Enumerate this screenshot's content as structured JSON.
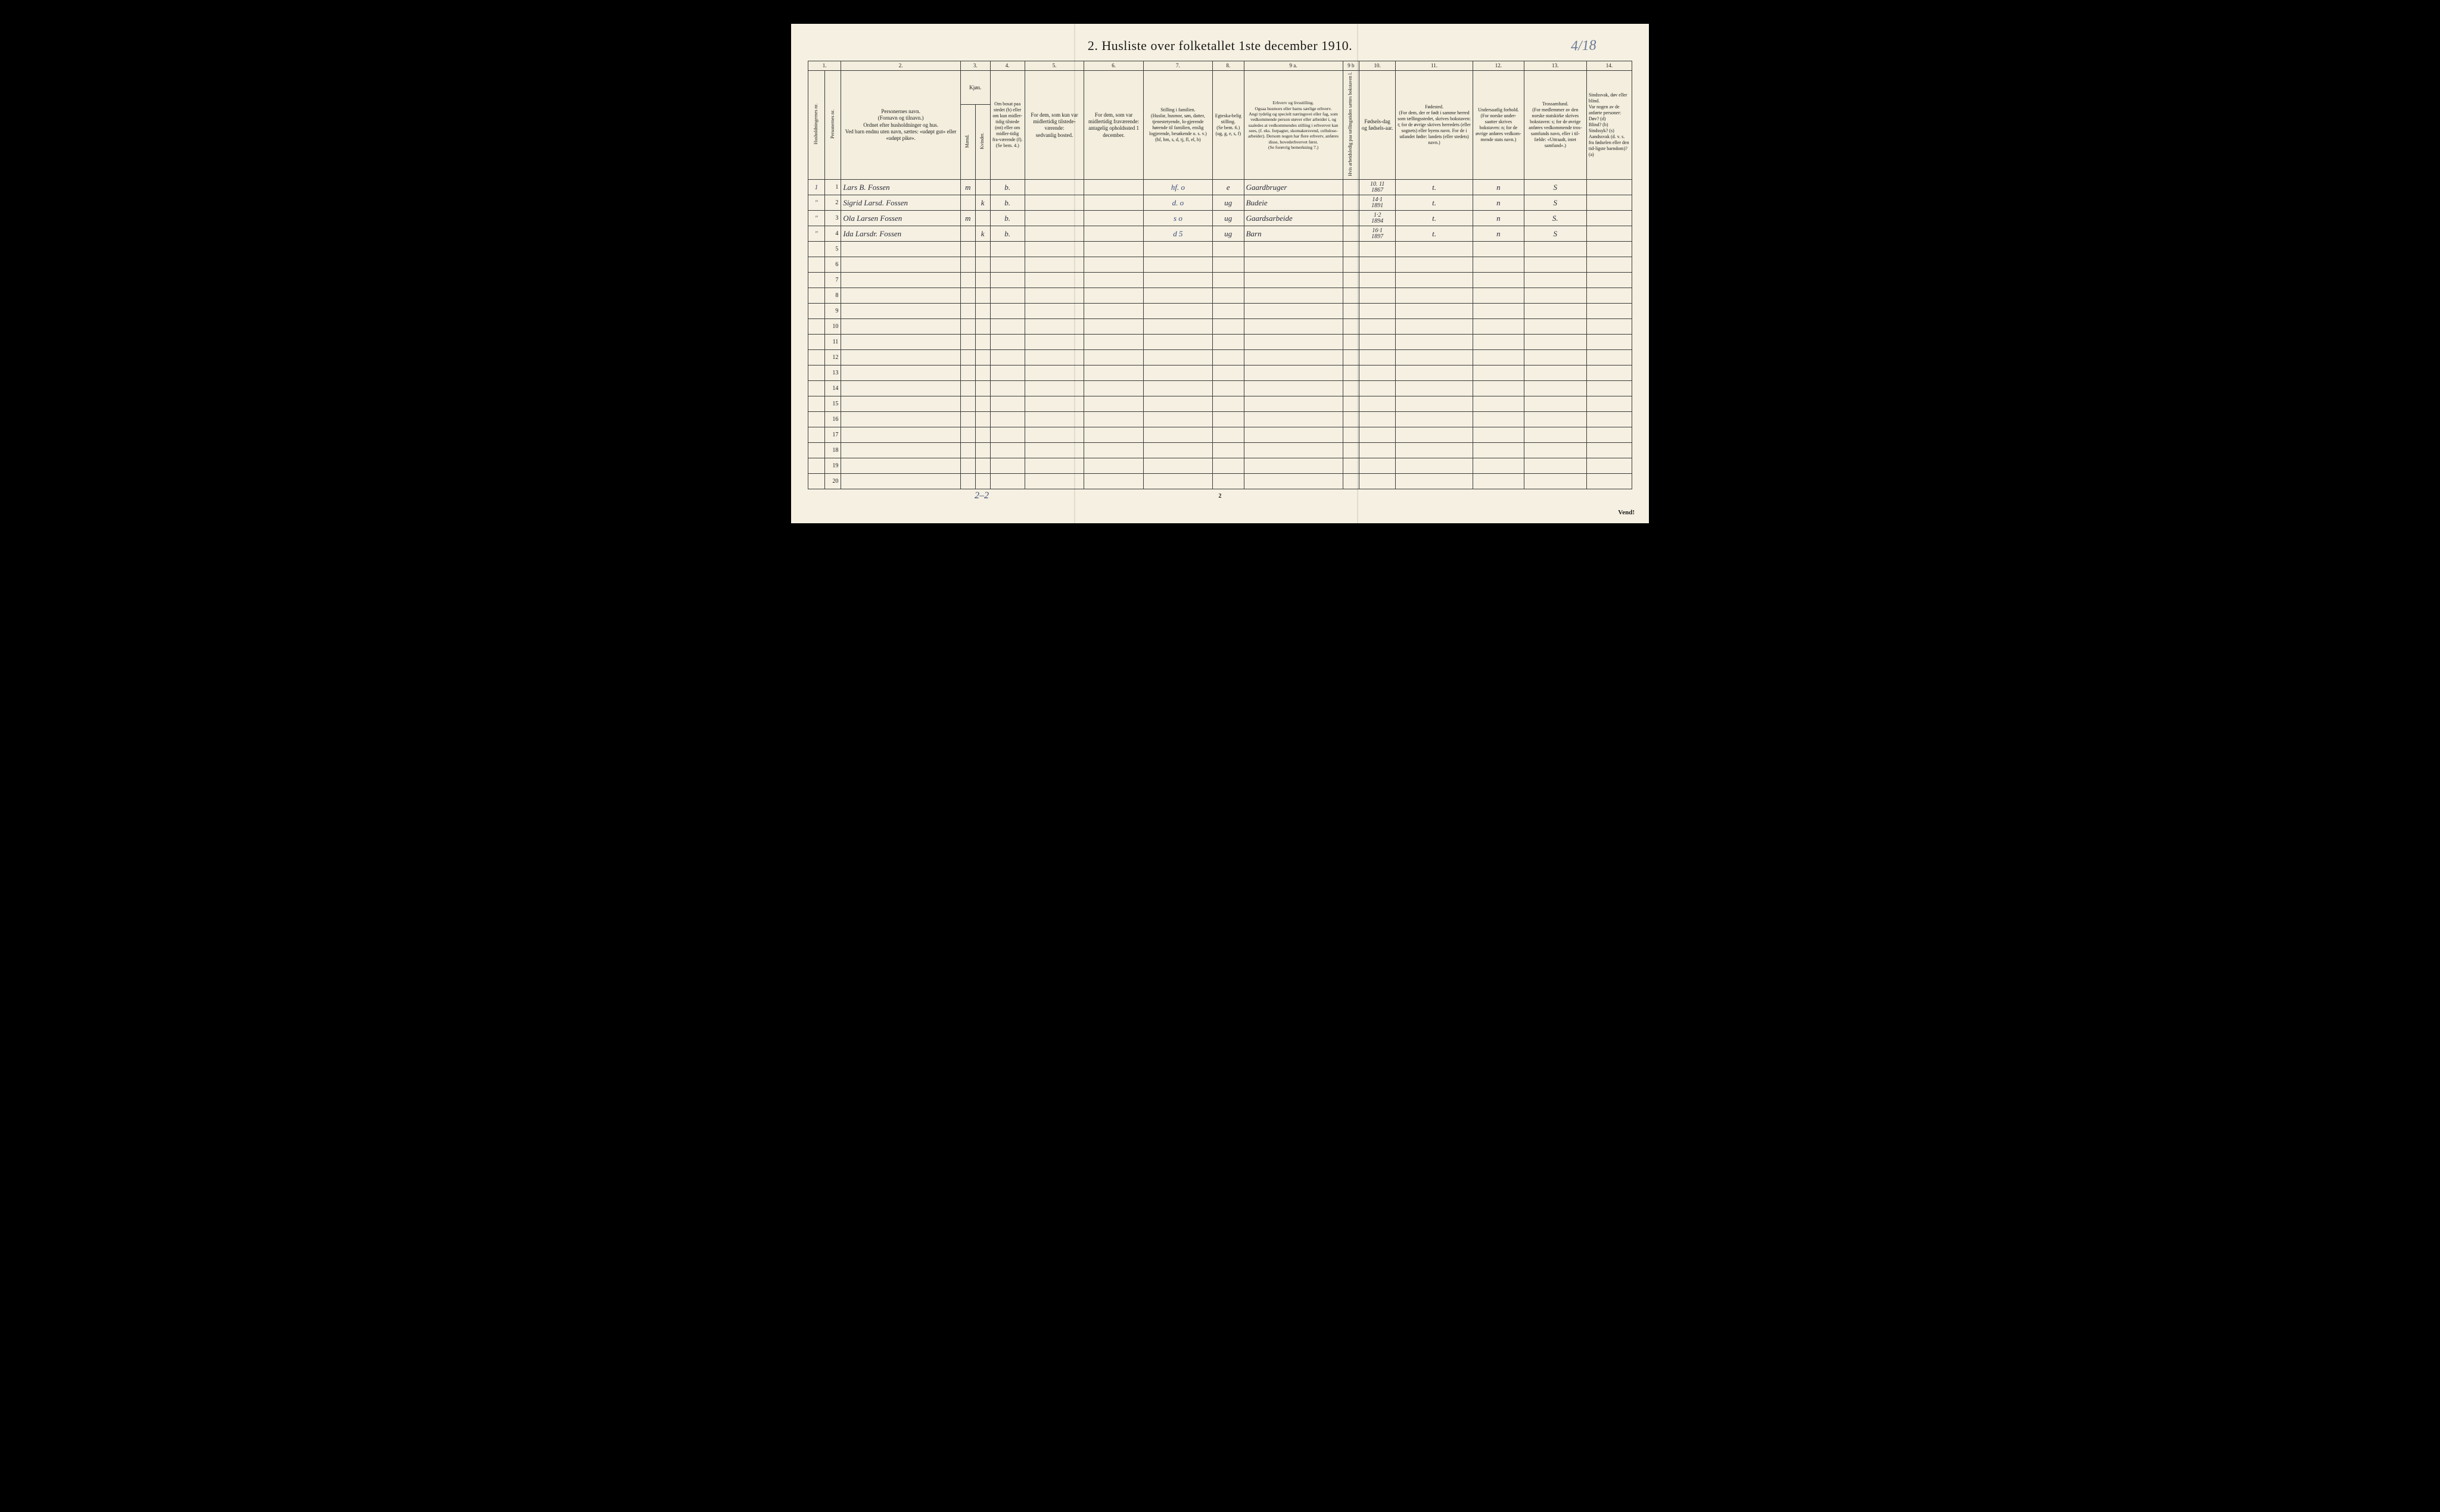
{
  "title": "2.  Husliste over folketallet 1ste december 1910.",
  "handwritten_id": "4/18",
  "page_number_bottom": "2",
  "vend_label": "Vend!",
  "footer_tally": "2–2",
  "column_numbers": [
    "1.",
    "",
    "2.",
    "3.",
    "",
    "4.",
    "5.",
    "6.",
    "7.",
    "8.",
    "9 a.",
    "9 b",
    "10.",
    "11.",
    "12.",
    "13.",
    "14."
  ],
  "headers": {
    "c1a": "Husholdningernes nr.",
    "c1b": "Personernes nr.",
    "c2": "Personernes navn.\n(Fornavn og tilnavn.)\nOrdnet efter husholdninger og hus.\nVed barn endnu uten navn, sættes: «udøpt gut» eller «udøpt pike».",
    "c3_top": "Kjøn.",
    "c3_m": "Mænd.",
    "c3_k": "Kvinder.",
    "c3_mk": "m.  k.",
    "c4": "Om bosat paa stedet (b) eller om kun midler-tidig tilstede (mt) eller om midler-tidig fra-værende (f). (Se bem. 4.)",
    "c5": "For dem, som kun var midlertidig tilstede-værende:\nsedvanlig bosted.",
    "c6": "For dem, som var midlertidig fraværende:\nantagelig opholdssted 1 december.",
    "c7": "Stilling i familien.\n(Husfar, husmor, søn, datter, tjenestetyende, lo-gjerende hørende til familien, enslig logjerende, besøkende o. s. v.)\n(hf, hm, s, d, tj, fl, el, b)",
    "c8": "Egteska-belig stilling.\n(Se bem. 6.)\n(ug, g, e, s, f)",
    "c9a": "Erhverv og livsstilling.\nOgsaa husmors eller barns særlige erhverv.\nAngi tydelig og specielt næringsvei eller fag, som vedkommende person utøver eller arbeider i, og saaledes at vedkommendes stilling i erhvervet kan sees, (f. eks. forpagter, skomakersvend, cellulose-arbeider). Dersom nogen har flere erhverv, anføres disse, hovederhvervet først.\n(Se forøvrig bemerkning 7.)",
    "c9b": "Hvis arbeidsledig paa tællingstiden sættes bokstaven l.",
    "c10": "Fødsels-dag og fødsels-aar.",
    "c11": "Fødested.\n(For dem, der er født i samme herred som tællingsstedet, skrives bokstaven: t; for de øvrige skrives herredets (eller sognets) eller byens navn. For de i utlandet fødte: landets (eller stedets) navn.)",
    "c12": "Undersaatlig forhold.\n(For norske under-saatter skrives bokstaven: n; for de øvrige anføres vedkom-mende stats navn.)",
    "c13": "Trossamfund.\n(For medlemmer av den norske statskirke skrives bokstaven: s; for de øvrige anføres vedkommende tros-samfunds navn, eller i til-fælde: «Uttraadt, intet samfund».)",
    "c14": "Sindssvak, døv eller blind.\nVar nogen av de anførte personer:\nDøv?      (d)\nBlind?    (b)\nSindssyk? (s)\nAandssvak (d. v. s. fra fødselen eller den tid-ligste barndom)? (a)"
  },
  "rows": [
    {
      "n": "1",
      "hh": "1",
      "name": "Lars B. Fossen",
      "sex_m": "m",
      "sex_k": "",
      "status": "b.",
      "col5": "",
      "col6": "",
      "col7": "hf.   o",
      "col8": "e",
      "col9a": "Gaardbruger",
      "col9b": "",
      "col10": "10. 11\n1867",
      "col11": "t.",
      "col12": "n",
      "col13": "S",
      "col14": ""
    },
    {
      "n": "2",
      "hh": "\"",
      "name": "Sigrid Larsd. Fossen",
      "sex_m": "",
      "sex_k": "k",
      "status": "b.",
      "col5": "",
      "col6": "",
      "col7": "d.   o",
      "col8": "ug",
      "col9a": "Budeie",
      "col9b": "",
      "col10": "14·1\n1891",
      "col11": "t.",
      "col12": "n",
      "col13": "S",
      "col14": ""
    },
    {
      "n": "3",
      "hh": "\"",
      "name": "Ola Larsen Fossen",
      "sex_m": "m",
      "sex_k": "",
      "status": "b.",
      "col5": "",
      "col6": "",
      "col7": "s   o",
      "col8": "ug",
      "col9a": "Gaardsarbeide",
      "col9b": "",
      "col10": "1·2\n1894",
      "col11": "t.",
      "col12": "n",
      "col13": "S.",
      "col14": ""
    },
    {
      "n": "4",
      "hh": "\"",
      "name": "Ida Larsdr. Fossen",
      "sex_m": "",
      "sex_k": "k",
      "status": "b.",
      "col5": "",
      "col6": "",
      "col7": "d   5",
      "col8": "ug",
      "col9a": "Barn",
      "col9b": "",
      "col10": "16·1\n1897",
      "col11": "t.",
      "col12": "n",
      "col13": "S",
      "col14": ""
    }
  ],
  "blank_rows": [
    "5",
    "6",
    "7",
    "8",
    "9",
    "10",
    "11",
    "12",
    "13",
    "14",
    "15",
    "16",
    "17",
    "18",
    "19",
    "20"
  ],
  "col_widths_pct": [
    2.0,
    2.0,
    14.5,
    1.8,
    1.8,
    4.2,
    7.2,
    7.2,
    8.4,
    3.8,
    12.0,
    2.0,
    4.4,
    9.4,
    6.2,
    7.6,
    5.5
  ],
  "colors": {
    "page_bg": "#f5f0e1",
    "ink": "#1a1a1a",
    "handwriting": "#2a2a3a",
    "blue_pencil": "#3a4a7a",
    "border": "#3a3a3a"
  }
}
